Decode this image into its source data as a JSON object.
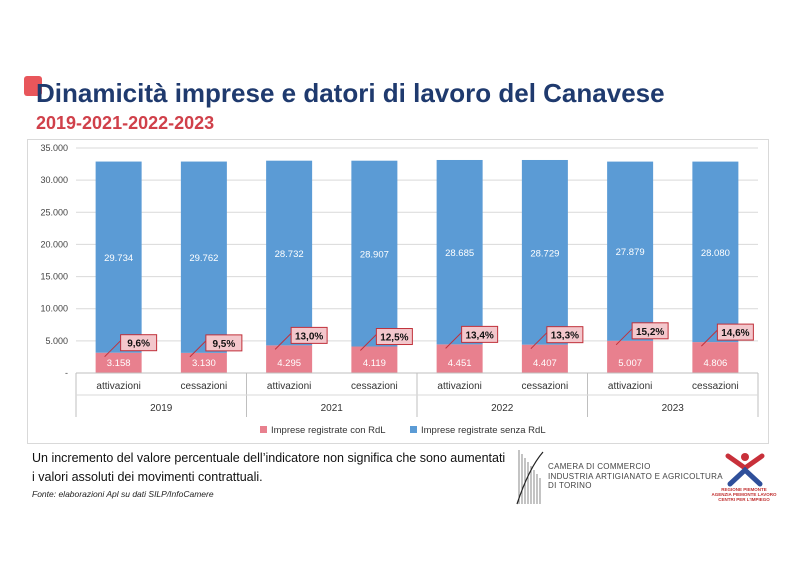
{
  "header": {
    "title": "Dinamicità imprese e datori di lavoro del Canavese",
    "subtitle": "2019-2021-2022-2023"
  },
  "chart_data": {
    "type": "bar",
    "stacked": true,
    "groups": [
      "2019",
      "2021",
      "2022",
      "2023"
    ],
    "categories": [
      "attivazioni",
      "cessazioni",
      "attivazioni",
      "cessazioni",
      "attivazioni",
      "cessazioni",
      "attivazioni",
      "cessazioni"
    ],
    "series": [
      {
        "name": "Imprese registrate con RdL",
        "color": "#e8808e",
        "values": [
          3158,
          3130,
          4295,
          4119,
          4451,
          4407,
          5007,
          4806
        ],
        "labels": [
          "3.158",
          "3.130",
          "4.295",
          "4.119",
          "4.451",
          "4.407",
          "5.007",
          "4.806"
        ]
      },
      {
        "name": "Imprese registrate senza RdL",
        "color": "#5b9bd5",
        "values": [
          29734,
          29762,
          28732,
          28907,
          28685,
          28729,
          27879,
          28080
        ],
        "labels": [
          "29.734",
          "29.762",
          "28.732",
          "28.907",
          "28.685",
          "28.729",
          "27.879",
          "28.080"
        ]
      }
    ],
    "percentages": [
      "9,6%",
      "9,5%",
      "13,0%",
      "12,5%",
      "13,4%",
      "13,3%",
      "15,2%",
      "14,6%"
    ],
    "ylim": [
      0,
      35000
    ],
    "yticks": [
      0,
      5000,
      10000,
      15000,
      20000,
      25000,
      30000,
      35000
    ],
    "ytick_labels": [
      "-",
      "5.000",
      "10.000",
      "15.000",
      "20.000",
      "25.000",
      "30.000",
      "35.000"
    ],
    "grid": true,
    "legend": "bottom"
  },
  "footer": {
    "note_line1": "Un incremento del valore percentuale dell’indicatore non significa che sono aumentati",
    "note_line2": "i valori assoluti dei movimenti contrattuali.",
    "source": "Fonte: elaborazioni Apl su dati SILP/InfoCamere",
    "camera_line1": "CAMERA DI COMMERCIO",
    "camera_line2": "INDUSTRIA ARTIGIANATO E AGRICOLTURA",
    "camera_line3": "DI TORINO",
    "regione_line1": "REGIONE PIEMONTE",
    "regione_line2": "AGENZIA PIEMONTE LAVORO",
    "regione_line3": "CENTRI PER L'IMPIEGO"
  }
}
